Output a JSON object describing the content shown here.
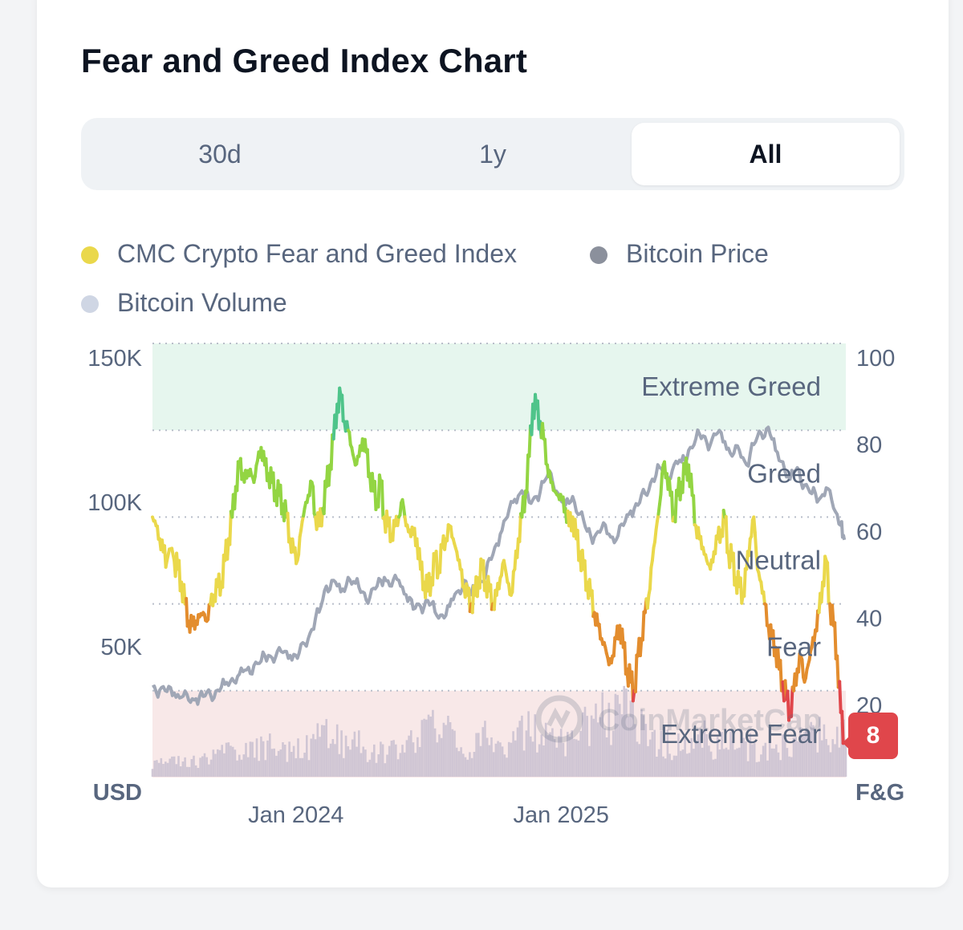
{
  "card": {
    "title": "Fear and Greed Index Chart"
  },
  "tabs": [
    {
      "label": "30d",
      "active": false
    },
    {
      "label": "1y",
      "active": false
    },
    {
      "label": "All",
      "active": true
    }
  ],
  "legend": [
    {
      "label": "CMC Crypto Fear and Greed Index",
      "color": "#ead84b"
    },
    {
      "label": "Bitcoin Price",
      "color": "#8b909c"
    },
    {
      "label": "Bitcoin Volume",
      "color": "#cfd6e4"
    }
  ],
  "watermark": "CoinMarketCap",
  "colors": {
    "extreme_fear": "#e0464b",
    "fear": "#e38d2e",
    "neutral": "#ead84b",
    "greed": "#93d543",
    "extreme_greed": "#4fc48a",
    "price": "#a0a7b6",
    "volume": "#c9bfd0",
    "greed_band": "#e6f6ee",
    "fear_band": "#f8e8e8"
  },
  "chart_data": {
    "type": "line",
    "title": "Fear and Greed Index Chart",
    "x_ticks": [
      "Jan 2024",
      "Jan 2025"
    ],
    "x_tick_positions_days": [
      198,
      564
    ],
    "days_total": 957,
    "left_axis": {
      "label": "USD",
      "ticks": [
        "150K",
        "100K",
        "50K"
      ],
      "tick_values": [
        150000,
        100000,
        50000
      ],
      "range": [
        0,
        150000
      ]
    },
    "right_axis": {
      "label": "F&G",
      "ticks": [
        "100",
        "80",
        "60",
        "40",
        "20"
      ],
      "tick_values": [
        100,
        80,
        60,
        40,
        20
      ],
      "range": [
        0,
        100
      ]
    },
    "zones": [
      {
        "label": "Extreme Greed",
        "from": 80,
        "to": 100
      },
      {
        "label": "Greed",
        "from": 60,
        "to": 80
      },
      {
        "label": "Neutral",
        "from": 40,
        "to": 60
      },
      {
        "label": "Fear",
        "from": 20,
        "to": 40
      },
      {
        "label": "Extreme Fear",
        "from": 0,
        "to": 20
      }
    ],
    "current_value": "8",
    "series": [
      {
        "name": "CMC Crypto Fear and Greed Index",
        "axis": "right",
        "x": [
          0,
          5,
          10,
          15,
          20,
          30,
          35,
          40,
          45,
          50,
          55,
          60,
          65,
          70,
          75,
          80,
          85,
          90,
          95,
          100,
          105,
          110,
          115,
          120,
          125,
          130,
          135,
          140,
          145,
          150,
          155,
          160,
          165,
          170,
          175,
          180,
          185,
          190,
          195,
          200,
          205,
          210,
          215,
          220,
          225,
          230,
          235,
          240,
          245,
          250,
          255,
          260,
          265,
          270,
          275,
          280,
          285,
          290,
          295,
          300,
          305,
          310,
          315,
          320,
          325,
          330,
          335,
          340,
          345,
          350,
          355,
          360,
          365,
          370,
          375,
          380,
          385,
          390,
          395,
          400,
          405,
          410,
          415,
          420,
          425,
          430,
          435,
          440,
          445,
          450,
          455,
          460,
          465,
          470,
          475,
          480,
          485,
          490,
          495,
          500,
          505,
          510,
          515,
          520,
          525,
          530,
          535,
          540,
          545,
          550,
          555,
          560,
          565,
          570,
          575,
          580,
          585,
          590,
          595,
          600,
          605,
          610,
          615,
          620,
          625,
          630,
          635,
          640,
          645,
          650,
          655,
          660,
          665,
          670,
          675,
          680,
          685,
          690,
          695,
          700,
          705,
          710,
          715,
          720,
          725,
          730,
          735,
          740,
          745,
          750,
          755,
          760,
          765,
          770,
          775,
          780,
          785,
          790,
          795,
          800,
          805,
          810,
          815,
          820,
          825,
          830,
          835,
          840,
          845,
          850,
          855,
          860,
          865,
          870,
          875,
          880,
          885,
          890,
          895,
          900,
          905,
          910,
          915,
          920,
          925,
          930,
          935,
          940,
          945,
          950,
          955
        ],
        "values": [
          60,
          58,
          55,
          52,
          50,
          50,
          48,
          45,
          40,
          36,
          35,
          36,
          37,
          38,
          36,
          40,
          42,
          44,
          45,
          50,
          55,
          60,
          67,
          72,
          70,
          69,
          71,
          68,
          73,
          76,
          72,
          70,
          68,
          66,
          65,
          63,
          60,
          55,
          52,
          50,
          57,
          62,
          65,
          68,
          60,
          58,
          62,
          67,
          72,
          78,
          86,
          88,
          82,
          80,
          76,
          72,
          74,
          78,
          75,
          70,
          66,
          64,
          68,
          60,
          58,
          56,
          58,
          60,
          64,
          58,
          57,
          56,
          55,
          48,
          45,
          43,
          46,
          50,
          48,
          53,
          55,
          58,
          55,
          52,
          48,
          44,
          42,
          40,
          42,
          46,
          48,
          45,
          43,
          40,
          42,
          46,
          50,
          45,
          42,
          48,
          55,
          60,
          66,
          74,
          86,
          85,
          82,
          78,
          72,
          68,
          66,
          65,
          64,
          62,
          58,
          60,
          55,
          52,
          48,
          45,
          42,
          38,
          35,
          32,
          30,
          26,
          28,
          32,
          35,
          30,
          25,
          22,
          20,
          28,
          32,
          38,
          42,
          50,
          57,
          63,
          72,
          70,
          65,
          60,
          65,
          68,
          70,
          72,
          65,
          58,
          55,
          53,
          50,
          48,
          52,
          55,
          57,
          60,
          52,
          50,
          46,
          44,
          42,
          48,
          55,
          60,
          48,
          45,
          40,
          35,
          32,
          30,
          25,
          22,
          18,
          15,
          20,
          25,
          28,
          22,
          26,
          30,
          34,
          38,
          45,
          50,
          40,
          35,
          28,
          15,
          8
        ]
      },
      {
        "name": "Bitcoin Price",
        "axis": "left",
        "x": [
          0,
          10,
          20,
          30,
          40,
          50,
          60,
          70,
          80,
          90,
          100,
          110,
          120,
          130,
          140,
          150,
          160,
          170,
          180,
          190,
          200,
          210,
          220,
          230,
          240,
          250,
          260,
          270,
          280,
          290,
          300,
          310,
          320,
          330,
          340,
          350,
          360,
          370,
          380,
          390,
          400,
          410,
          420,
          430,
          440,
          450,
          460,
          470,
          480,
          490,
          500,
          510,
          520,
          530,
          540,
          550,
          560,
          570,
          580,
          590,
          600,
          610,
          620,
          630,
          640,
          650,
          660,
          670,
          680,
          690,
          700,
          710,
          720,
          730,
          740,
          750,
          760,
          770,
          780,
          790,
          800,
          810,
          820,
          830,
          840,
          850,
          860,
          870,
          880,
          890,
          900,
          910,
          920,
          930,
          940,
          950,
          955
        ],
        "values": [
          31000,
          30000,
          29500,
          29000,
          27500,
          26500,
          27000,
          27800,
          28500,
          30000,
          32000,
          34000,
          35500,
          37000,
          38500,
          40000,
          42000,
          41500,
          43000,
          42000,
          41000,
          46000,
          51000,
          57000,
          66000,
          68000,
          64000,
          69000,
          67000,
          64000,
          62000,
          66000,
          69000,
          66000,
          68000,
          63000,
          58000,
          59000,
          61000,
          57000,
          56000,
          59000,
          64000,
          68000,
          63000,
          67000,
          70000,
          77000,
          84000,
          90000,
          96000,
          99000,
          95000,
          97000,
          102000,
          105000,
          98000,
          94000,
          97000,
          91000,
          85000,
          83000,
          86000,
          84000,
          82000,
          87000,
          92000,
          94000,
          98000,
          103000,
          107000,
          104000,
          108000,
          109000,
          113000,
          117000,
          118000,
          115000,
          119000,
          116000,
          111000,
          113000,
          108000,
          115000,
          119000,
          121000,
          113000,
          109000,
          103000,
          107000,
          101000,
          98000,
          96000,
          100000,
          93000,
          87000,
          82000
        ]
      },
      {
        "name": "Bitcoin Volume",
        "axis": "left",
        "x": [
          0,
          20,
          40,
          60,
          80,
          100,
          120,
          140,
          160,
          180,
          200,
          220,
          240,
          260,
          280,
          300,
          320,
          340,
          360,
          380,
          400,
          420,
          440,
          460,
          480,
          500,
          520,
          540,
          560,
          580,
          600,
          620,
          640,
          660,
          680,
          700,
          720,
          740,
          760,
          780,
          800,
          820,
          840,
          860,
          880,
          900,
          920,
          940,
          955
        ],
        "values": [
          6000,
          5000,
          5500,
          6500,
          7000,
          9000,
          11000,
          10000,
          12000,
          9000,
          11000,
          13000,
          19000,
          12000,
          14000,
          10000,
          9000,
          11000,
          15000,
          16000,
          20000,
          13000,
          12000,
          16000,
          11000,
          15000,
          18000,
          14000,
          13000,
          15000,
          20000,
          22000,
          25000,
          23000,
          19000,
          14000,
          12000,
          10000,
          15000,
          11000,
          13000,
          12000,
          10000,
          11000,
          12000,
          14000,
          16000,
          13000,
          20000
        ]
      }
    ]
  }
}
